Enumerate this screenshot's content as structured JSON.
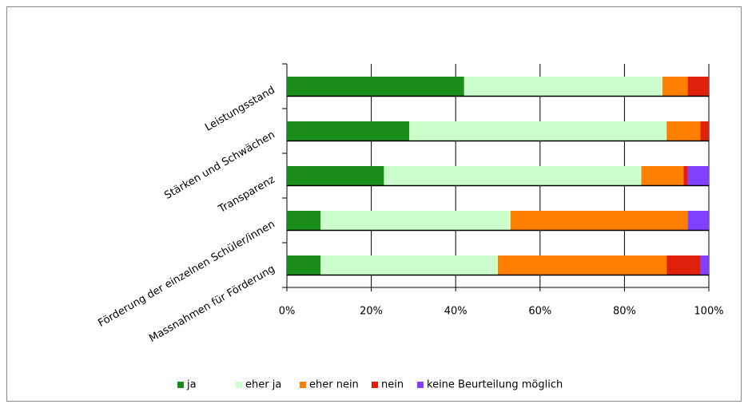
{
  "chart_data": {
    "type": "stacked_bar_horizontal",
    "categories": [
      "Leistungsstand",
      "Stärken und Schwächen",
      "Transparenz",
      "Förderung der einzelnen Schüler/innen",
      "Massnahmen für Förderung"
    ],
    "series": [
      {
        "name": "ja",
        "color": "#1a8c1a",
        "values": [
          42,
          29,
          23,
          8,
          8
        ]
      },
      {
        "name": "eher ja",
        "color": "#ccffcc",
        "values": [
          47,
          61,
          61,
          45,
          42
        ]
      },
      {
        "name": "eher nein",
        "color": "#ff8000",
        "values": [
          6,
          8,
          10,
          42,
          40
        ]
      },
      {
        "name": "nein",
        "color": "#e0200a",
        "values": [
          5,
          2,
          1,
          0,
          8
        ]
      },
      {
        "name": "keine Beurteilung möglich",
        "color": "#8040ff",
        "values": [
          0,
          0,
          5,
          5,
          2
        ]
      }
    ],
    "xlim": [
      0,
      100
    ],
    "xticks": [
      {
        "value": 0,
        "label": "0%"
      },
      {
        "value": 20,
        "label": "20%"
      },
      {
        "value": 40,
        "label": "40%"
      },
      {
        "value": 60,
        "label": "60%"
      },
      {
        "value": 80,
        "label": "80%"
      },
      {
        "value": 100,
        "label": "100%"
      }
    ],
    "grid": true,
    "legend": "bottom"
  }
}
